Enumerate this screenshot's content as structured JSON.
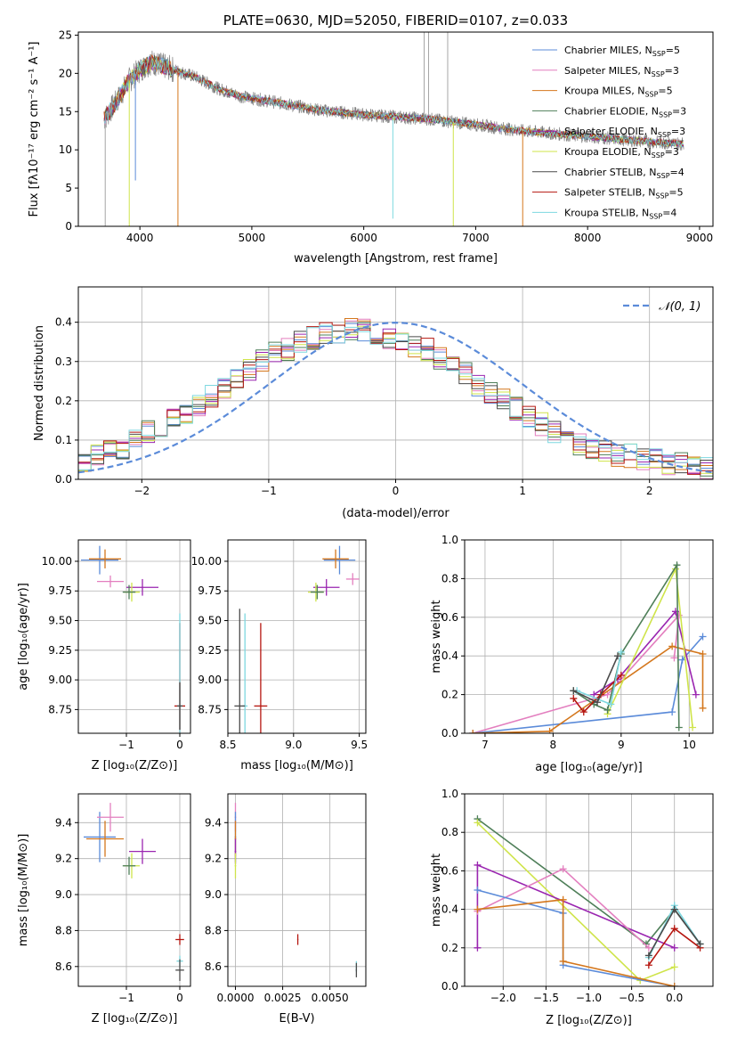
{
  "colors": {
    "blue": "#5b8bd9",
    "pink": "#e37fbf",
    "orange": "#d4771d",
    "dkgreen": "#4f7f59",
    "purple": "#9a25b0",
    "lime": "#cfe44a",
    "gray": "#4a4a4a",
    "red": "#b5160f",
    "cyan": "#7dd8e0"
  },
  "chart_data": [
    {
      "id": "spectrum",
      "type": "line",
      "title": "PLATE=0630, MJD=52050, FIBERID=0107, z=0.033",
      "xlabel": "wavelength [Angstrom, rest frame]",
      "ylabel": "Flux [fλ10⁻¹⁷ erg cm⁻² s⁻¹ A⁻¹]",
      "xlim": [
        3450,
        9120
      ],
      "ylim": [
        0,
        25.4
      ],
      "xticks": [
        "4000",
        "5000",
        "6000",
        "7000",
        "8000",
        "9000"
      ],
      "yticks": [
        "0",
        "5",
        "10",
        "15",
        "20",
        "25"
      ],
      "legend_position": "top-right",
      "series": [
        {
          "name": "Chabrier MILES, N",
          "sub": "SSP",
          "suffix": "=5",
          "color": "blue"
        },
        {
          "name": "Salpeter MILES, N",
          "sub": "SSP",
          "suffix": "=3",
          "color": "pink"
        },
        {
          "name": "Kroupa MILES, N",
          "sub": "SSP",
          "suffix": "=5",
          "color": "orange"
        },
        {
          "name": "Chabrier ELODIE, N",
          "sub": "SSP",
          "suffix": "=3",
          "color": "dkgreen"
        },
        {
          "name": "Salpeter ELODIE, N",
          "sub": "SSP",
          "suffix": "=3",
          "color": "purple"
        },
        {
          "name": "Kroupa ELODIE, N",
          "sub": "SSP",
          "suffix": "=3",
          "color": "lime"
        },
        {
          "name": "Chabrier STELIB, N",
          "sub": "SSP",
          "suffix": "=4",
          "color": "gray"
        },
        {
          "name": "Salpeter STELIB, N",
          "sub": "SSP",
          "suffix": "=5",
          "color": "red"
        },
        {
          "name": "Kroupa STELIB, N",
          "sub": "SSP",
          "suffix": "=4",
          "color": "cyan"
        }
      ],
      "continuum_x": [
        3680,
        3800,
        3900,
        4000,
        4100,
        4300,
        4500,
        4700,
        4900,
        5100,
        5300,
        5600,
        6000,
        6300,
        6600,
        7000,
        7400,
        7800,
        8200,
        8600,
        8860
      ],
      "continuum_y": [
        14.0,
        16.5,
        19.0,
        20.5,
        21.5,
        20.5,
        19.5,
        18.0,
        17.0,
        16.5,
        16.0,
        15.2,
        14.6,
        14.3,
        14.0,
        13.3,
        12.5,
        12.0,
        11.5,
        11.0,
        10.8
      ],
      "observed_spikes": [
        {
          "x": 3690,
          "y0": 0,
          "y1": 14
        },
        {
          "x": 6540,
          "y0": 14,
          "y1": 25.4
        },
        {
          "x": 6580,
          "y0": 14,
          "y1": 25.4
        },
        {
          "x": 6750,
          "y0": 14,
          "y1": 25.4
        }
      ],
      "model_dips": [
        {
          "x": 3905,
          "y": 0,
          "color": "lime"
        },
        {
          "x": 3960,
          "y": 6.0,
          "color": "blue"
        },
        {
          "x": 4340,
          "y": 0,
          "color": "orange"
        },
        {
          "x": 6260,
          "y": 1.0,
          "color": "cyan"
        },
        {
          "x": 6800,
          "y": 0,
          "color": "lime"
        },
        {
          "x": 7420,
          "y": 0,
          "color": "orange"
        }
      ]
    },
    {
      "id": "residuals",
      "type": "step",
      "xlabel": "(data-model)/error",
      "ylabel": "Normed distribution",
      "xlim": [
        -2.5,
        2.5
      ],
      "ylim": [
        0,
        0.49
      ],
      "xticks": [
        "−2",
        "−1",
        "0",
        "1",
        "2"
      ],
      "yticks": [
        "0.0",
        "0.1",
        "0.2",
        "0.3",
        "0.4"
      ],
      "bin_edges_start": -2.5,
      "bin_width": 0.1,
      "base_hist": [
        0.05,
        0.06,
        0.07,
        0.08,
        0.1,
        0.12,
        0.13,
        0.15,
        0.17,
        0.19,
        0.21,
        0.23,
        0.25,
        0.28,
        0.3,
        0.32,
        0.33,
        0.35,
        0.36,
        0.37,
        0.37,
        0.38,
        0.38,
        0.37,
        0.36,
        0.35,
        0.34,
        0.33,
        0.31,
        0.29,
        0.27,
        0.24,
        0.22,
        0.2,
        0.18,
        0.16,
        0.14,
        0.12,
        0.1,
        0.09,
        0.08,
        0.07,
        0.06,
        0.06,
        0.05,
        0.05,
        0.04,
        0.04,
        0.03,
        0.03
      ],
      "gaussian": {
        "name": "𝒩(0, 1)",
        "mean": 0,
        "sigma": 1,
        "color": "#5b8bd9"
      },
      "legend_position": "top-right"
    },
    {
      "id": "age_vs_Z",
      "type": "errorbar",
      "xlabel": "Z [log₁₀(Z/Z⊙)]",
      "ylabel": "age  [log₁₀(age/yr)]",
      "xlim": [
        -1.9,
        0.2
      ],
      "ylim": [
        8.55,
        10.18
      ],
      "xticks": [
        {
          "v": -1,
          "t": "−1"
        },
        {
          "v": 0,
          "t": "0"
        }
      ],
      "yticks": [
        {
          "v": 8.75,
          "t": "8.75"
        },
        {
          "v": 9.0,
          "t": "9.00"
        },
        {
          "v": 9.25,
          "t": "9.25"
        },
        {
          "v": 9.5,
          "t": "9.50"
        },
        {
          "v": 9.75,
          "t": "9.75"
        },
        {
          "v": 10.0,
          "t": "10.00"
        }
      ],
      "points": [
        {
          "x": -1.5,
          "y": 10.01,
          "xe": 0.35,
          "ye": 0.12,
          "color": "blue"
        },
        {
          "x": -1.4,
          "y": 10.02,
          "xe": 0.3,
          "ye": 0.08,
          "color": "orange"
        },
        {
          "x": -1.3,
          "y": 9.83,
          "xe": 0.25,
          "ye": 0.05,
          "color": "pink"
        },
        {
          "x": -0.7,
          "y": 9.78,
          "xe": 0.3,
          "ye": 0.07,
          "color": "purple"
        },
        {
          "x": -0.9,
          "y": 9.74,
          "xe": 0.15,
          "ye": 0.08,
          "color": "lime"
        },
        {
          "x": -0.95,
          "y": 9.74,
          "xe": 0.12,
          "ye": 0.06,
          "color": "dkgreen"
        },
        {
          "x": 0.0,
          "y": 8.78,
          "xe": 0.1,
          "ye": 0.7,
          "color": "red"
        },
        {
          "x": 0.0,
          "y": 8.78,
          "xe": 0.05,
          "ye": 0.78,
          "color": "cyan"
        },
        {
          "x": 0.0,
          "y": 8.78,
          "xe": 0.05,
          "ye": 0.2,
          "color": "gray"
        }
      ]
    },
    {
      "id": "age_vs_mass",
      "type": "errorbar",
      "xlabel": "mass [log₁₀(M/M⊙)]",
      "ylabel": "",
      "xlim": [
        8.5,
        9.55
      ],
      "ylim": [
        8.55,
        10.18
      ],
      "xticks": [
        {
          "v": 8.5,
          "t": "8.5"
        },
        {
          "v": 9.0,
          "t": "9.0"
        },
        {
          "v": 9.5,
          "t": "9.5"
        }
      ],
      "yticks": [
        {
          "v": 8.75,
          "t": "8.75"
        },
        {
          "v": 9.0,
          "t": "9.00"
        },
        {
          "v": 9.25,
          "t": "9.25"
        },
        {
          "v": 9.5,
          "t": "9.50"
        },
        {
          "v": 9.75,
          "t": "9.75"
        },
        {
          "v": 10.0,
          "t": "10.00"
        }
      ],
      "points": [
        {
          "x": 9.35,
          "y": 10.01,
          "xe": 0.12,
          "ye": 0.12,
          "color": "blue"
        },
        {
          "x": 9.32,
          "y": 10.02,
          "xe": 0.1,
          "ye": 0.08,
          "color": "orange"
        },
        {
          "x": 9.45,
          "y": 9.85,
          "xe": 0.05,
          "ye": 0.05,
          "color": "pink"
        },
        {
          "x": 9.25,
          "y": 9.78,
          "xe": 0.1,
          "ye": 0.07,
          "color": "purple"
        },
        {
          "x": 9.17,
          "y": 9.74,
          "xe": 0.06,
          "ye": 0.08,
          "color": "lime"
        },
        {
          "x": 9.18,
          "y": 9.74,
          "xe": 0.05,
          "ye": 0.06,
          "color": "dkgreen"
        },
        {
          "x": 8.75,
          "y": 8.78,
          "xe": 0.05,
          "ye": 0.7,
          "color": "red"
        },
        {
          "x": 8.63,
          "y": 8.78,
          "xe": 0.02,
          "ye": 0.78,
          "color": "cyan"
        },
        {
          "x": 8.59,
          "y": 8.78,
          "xe": 0.04,
          "ye": 0.82,
          "color": "gray"
        }
      ]
    },
    {
      "id": "weight_vs_age",
      "type": "line",
      "xlabel": "age  [log₁₀(age/yr)]",
      "ylabel": "mass weight",
      "xlim": [
        6.7,
        10.35
      ],
      "ylim": [
        0,
        1.0
      ],
      "xticks": [
        {
          "v": 7,
          "t": "7"
        },
        {
          "v": 8,
          "t": "8"
        },
        {
          "v": 9,
          "t": "9"
        },
        {
          "v": 10,
          "t": "10"
        }
      ],
      "yticks": [
        {
          "v": 0,
          "t": "0.0"
        },
        {
          "v": 0.2,
          "t": "0.2"
        },
        {
          "v": 0.4,
          "t": "0.4"
        },
        {
          "v": 0.6,
          "t": "0.6"
        },
        {
          "v": 0.8,
          "t": "0.8"
        },
        {
          "v": 1.0,
          "t": "1.0"
        }
      ],
      "series": [
        {
          "color": "pink",
          "x": [
            6.82,
            8.8,
            9.85,
            9.78
          ],
          "y": [
            0.0,
            0.2,
            0.61,
            0.39
          ]
        },
        {
          "color": "blue",
          "x": [
            6.82,
            9.75,
            9.9,
            10.2
          ],
          "y": [
            0.0,
            0.11,
            0.38,
            0.5
          ]
        },
        {
          "color": "orange",
          "x": [
            6.82,
            7.95,
            9.75,
            10.2,
            10.2
          ],
          "y": [
            0.0,
            0.01,
            0.45,
            0.41,
            0.13
          ]
        },
        {
          "color": "purple",
          "x": [
            8.6,
            8.95,
            9.8,
            10.1
          ],
          "y": [
            0.2,
            0.28,
            0.63,
            0.2
          ]
        },
        {
          "color": "lime",
          "x": [
            8.8,
            9.8,
            10.05
          ],
          "y": [
            0.1,
            0.85,
            0.03
          ]
        },
        {
          "color": "dkgreen",
          "x": [
            8.3,
            8.6,
            8.8,
            9.0,
            9.82,
            9.85
          ],
          "y": [
            0.22,
            0.15,
            0.12,
            0.41,
            0.87,
            0.03
          ]
        },
        {
          "color": "red",
          "x": [
            8.3,
            8.45,
            8.7,
            9.0
          ],
          "y": [
            0.18,
            0.11,
            0.2,
            0.3
          ]
        },
        {
          "color": "cyan",
          "x": [
            8.35,
            8.85,
            9.0
          ],
          "y": [
            0.22,
            0.15,
            0.42
          ]
        },
        {
          "color": "gray",
          "x": [
            8.3,
            8.65,
            8.95
          ],
          "y": [
            0.22,
            0.16,
            0.4
          ]
        }
      ]
    },
    {
      "id": "mass_vs_Z",
      "type": "errorbar",
      "xlabel": "Z [log₁₀(Z/Z⊙)]",
      "ylabel": "mass [log₁₀(M/M⊙)]",
      "xlim": [
        -1.9,
        0.2
      ],
      "ylim": [
        8.49,
        9.56
      ],
      "xticks": [
        {
          "v": -1,
          "t": "−1"
        },
        {
          "v": 0,
          "t": "0"
        }
      ],
      "yticks": [
        {
          "v": 8.6,
          "t": "8.6"
        },
        {
          "v": 8.8,
          "t": "8.8"
        },
        {
          "v": 9.0,
          "t": "9.0"
        },
        {
          "v": 9.2,
          "t": "9.2"
        },
        {
          "v": 9.4,
          "t": "9.4"
        }
      ],
      "points": [
        {
          "x": -1.5,
          "y": 9.32,
          "xe": 0.3,
          "ye": 0.14,
          "color": "blue"
        },
        {
          "x": -1.4,
          "y": 9.31,
          "xe": 0.35,
          "ye": 0.1,
          "color": "orange"
        },
        {
          "x": -1.3,
          "y": 9.43,
          "xe": 0.25,
          "ye": 0.08,
          "color": "pink"
        },
        {
          "x": -0.7,
          "y": 9.24,
          "xe": 0.25,
          "ye": 0.07,
          "color": "purple"
        },
        {
          "x": -0.9,
          "y": 9.16,
          "xe": 0.15,
          "ye": 0.07,
          "color": "lime"
        },
        {
          "x": -0.95,
          "y": 9.16,
          "xe": 0.12,
          "ye": 0.05,
          "color": "dkgreen"
        },
        {
          "x": 0.0,
          "y": 8.75,
          "xe": 0.08,
          "ye": 0.03,
          "color": "red"
        },
        {
          "x": 0.0,
          "y": 8.63,
          "xe": 0.06,
          "ye": 0.03,
          "color": "cyan"
        },
        {
          "x": 0.0,
          "y": 8.58,
          "xe": 0.08,
          "ye": 0.06,
          "color": "gray"
        }
      ]
    },
    {
      "id": "mass_vs_EBV",
      "type": "errorbar",
      "xlabel": "E(B-V)",
      "ylabel": "",
      "xlim": [
        -0.0004,
        0.0069
      ],
      "ylim": [
        8.49,
        9.56
      ],
      "xticks": [
        {
          "v": 0.0,
          "t": "0.0000"
        },
        {
          "v": 0.0025,
          "t": "0.0025"
        },
        {
          "v": 0.005,
          "t": "0.0050"
        }
      ],
      "yticks": [
        {
          "v": 8.6,
          "t": "8.6"
        },
        {
          "v": 8.8,
          "t": "8.8"
        },
        {
          "v": 9.0,
          "t": "9.0"
        },
        {
          "v": 9.2,
          "t": "9.2"
        },
        {
          "v": 9.4,
          "t": "9.4"
        }
      ],
      "points": [
        {
          "x": 0.0,
          "y": 9.43,
          "xe": 4e-05,
          "ye": 0.08,
          "color": "pink"
        },
        {
          "x": 0.0,
          "y": 9.32,
          "xe": 4e-05,
          "ye": 0.14,
          "color": "blue"
        },
        {
          "x": 0.0,
          "y": 9.31,
          "xe": 4e-05,
          "ye": 0.1,
          "color": "orange"
        },
        {
          "x": 0.0,
          "y": 9.24,
          "xe": 4e-05,
          "ye": 0.07,
          "color": "purple"
        },
        {
          "x": 0.0,
          "y": 9.16,
          "xe": 4e-05,
          "ye": 0.07,
          "color": "lime"
        },
        {
          "x": 0.0033,
          "y": 8.75,
          "xe": 3e-05,
          "ye": 0.03,
          "color": "red"
        },
        {
          "x": 0.0064,
          "y": 8.6,
          "xe": 3e-05,
          "ye": 0.03,
          "color": "cyan"
        },
        {
          "x": 0.0064,
          "y": 8.58,
          "xe": 3e-05,
          "ye": 0.04,
          "color": "gray"
        }
      ]
    },
    {
      "id": "weight_vs_Z",
      "type": "line",
      "xlabel": "Z [log₁₀(Z/Z⊙)]",
      "ylabel": "mass weight",
      "xlim": [
        -2.45,
        0.45
      ],
      "ylim": [
        0,
        1.0
      ],
      "xticks": [
        {
          "v": -2.0,
          "t": "−2.0"
        },
        {
          "v": -1.5,
          "t": "−1.5"
        },
        {
          "v": -1.0,
          "t": "−1.0"
        },
        {
          "v": -0.5,
          "t": "−0.5"
        },
        {
          "v": 0.0,
          "t": "0.0"
        }
      ],
      "yticks": [
        {
          "v": 0,
          "t": "0.0"
        },
        {
          "v": 0.2,
          "t": "0.2"
        },
        {
          "v": 0.4,
          "t": "0.4"
        },
        {
          "v": 0.6,
          "t": "0.6"
        },
        {
          "v": 0.8,
          "t": "0.8"
        },
        {
          "v": 1.0,
          "t": "1.0"
        }
      ],
      "series": [
        {
          "color": "dkgreen",
          "x": [
            -2.3,
            -0.33,
            0.0,
            0.3
          ],
          "y": [
            0.87,
            0.22,
            0.4,
            0.22
          ]
        },
        {
          "color": "lime",
          "x": [
            -2.3,
            -0.4,
            0.0
          ],
          "y": [
            0.85,
            0.03,
            0.1
          ]
        },
        {
          "color": "purple",
          "x": [
            -2.3,
            -2.3,
            0.0
          ],
          "y": [
            0.2,
            0.63,
            0.2
          ]
        },
        {
          "color": "pink",
          "x": [
            -2.3,
            -1.3,
            -0.3
          ],
          "y": [
            0.39,
            0.61,
            0.2
          ]
        },
        {
          "color": "blue",
          "x": [
            -2.3,
            -1.3,
            -1.3,
            0.0
          ],
          "y": [
            0.5,
            0.38,
            0.11,
            0.0
          ]
        },
        {
          "color": "orange",
          "x": [
            -2.3,
            -1.3,
            -1.3,
            0.0
          ],
          "y": [
            0.4,
            0.45,
            0.13,
            0.0
          ]
        },
        {
          "color": "red",
          "x": [
            -0.3,
            0.0,
            0.3
          ],
          "y": [
            0.11,
            0.3,
            0.2
          ]
        },
        {
          "color": "cyan",
          "x": [
            -0.3,
            0.0,
            0.3
          ],
          "y": [
            0.15,
            0.42,
            0.22
          ]
        },
        {
          "color": "gray",
          "x": [
            -0.3,
            0.0,
            0.3
          ],
          "y": [
            0.16,
            0.4,
            0.22
          ]
        }
      ]
    }
  ]
}
